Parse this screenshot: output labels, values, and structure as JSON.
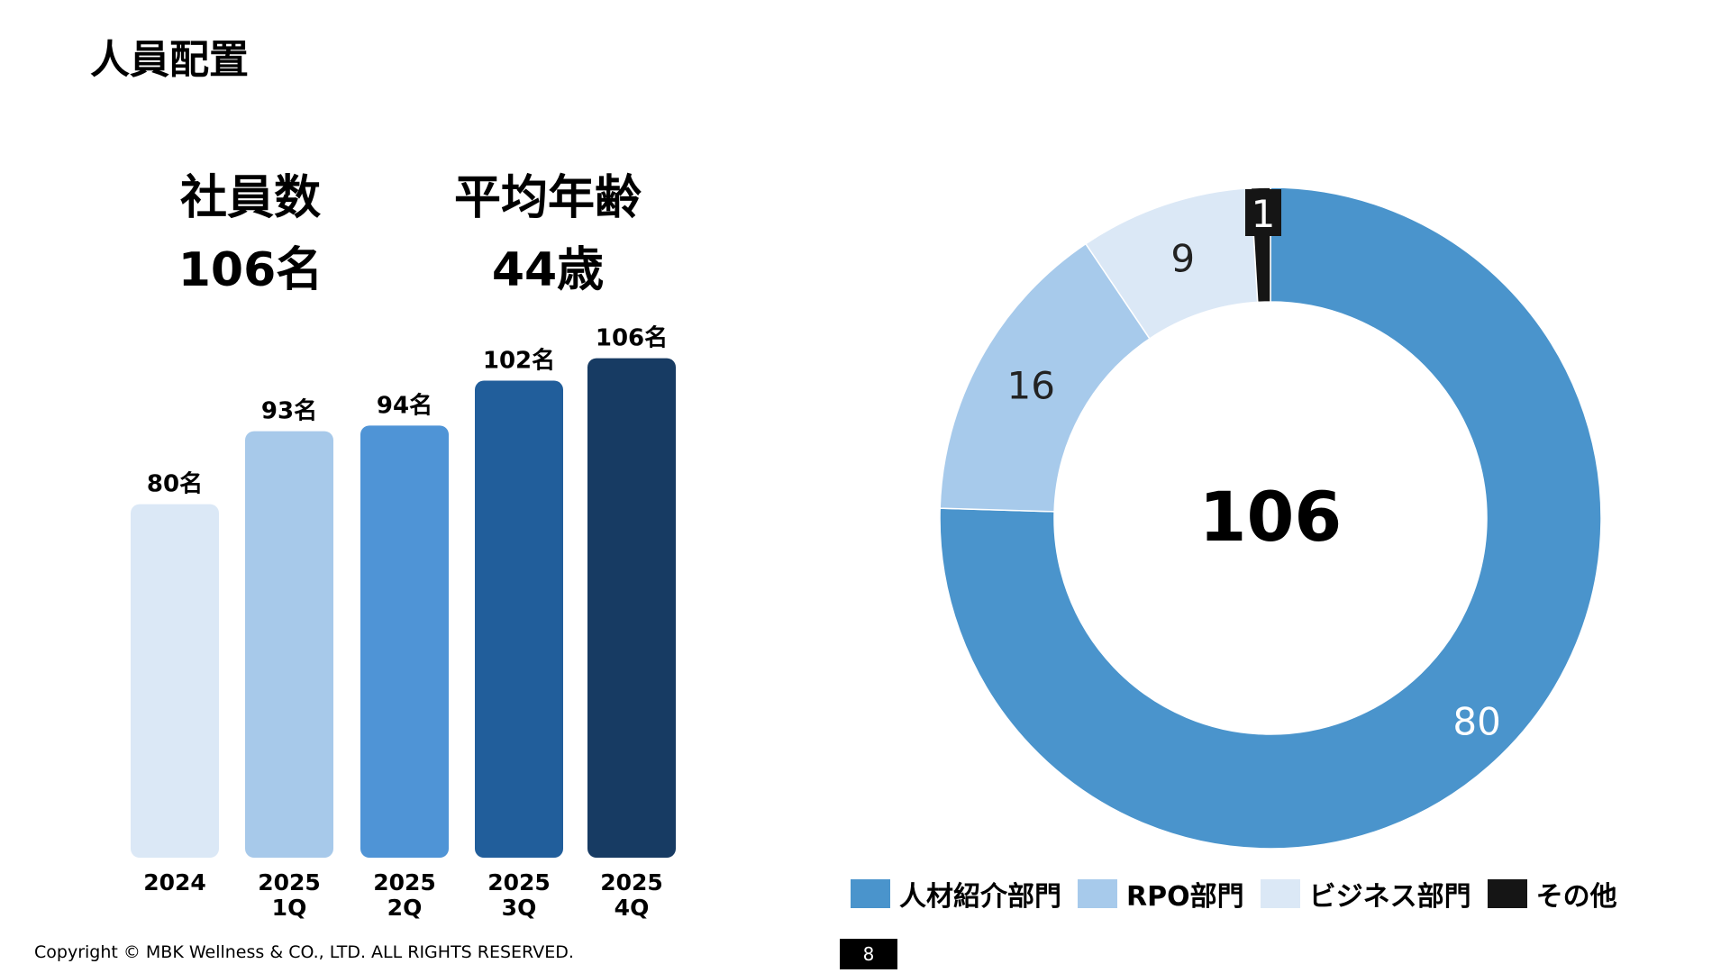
{
  "title": "人員配置",
  "stats": {
    "employees_label": "社員数",
    "employees_value": "106名",
    "avg_age_label": "平均年齢",
    "avg_age_value": "44歳"
  },
  "chart_data": [
    {
      "type": "bar",
      "categories": [
        [
          "2024"
        ],
        [
          "2025",
          "1Q"
        ],
        [
          "2025",
          "2Q"
        ],
        [
          "2025",
          "3Q"
        ],
        [
          "2025",
          "4Q"
        ]
      ],
      "values": [
        80,
        93,
        94,
        102,
        106
      ],
      "data_labels": [
        "80名",
        "93名",
        "94名",
        "102名",
        "106名"
      ],
      "colors": [
        "#dbe8f6",
        "#a7c9ea",
        "#4f94d6",
        "#215e9b",
        "#173b63"
      ],
      "title": "",
      "xlabel": "",
      "ylabel": "",
      "grid": false
    },
    {
      "type": "pie",
      "donut": true,
      "center_label": "106",
      "slices": [
        {
          "name": "人材紹介部門",
          "value": 80,
          "color": "#4a94cc"
        },
        {
          "name": "RPO部門",
          "value": 16,
          "color": "#a7caeb"
        },
        {
          "name": "ビジネス部門",
          "value": 9,
          "color": "#dbe8f6"
        },
        {
          "name": "その他",
          "value": 1,
          "color": "#151515"
        }
      ],
      "legend": "bottom"
    }
  ],
  "footer": {
    "copyright": "Copyright © MBK Wellness & CO., LTD. ALL RIGHTS RESERVED.",
    "page": "8"
  }
}
